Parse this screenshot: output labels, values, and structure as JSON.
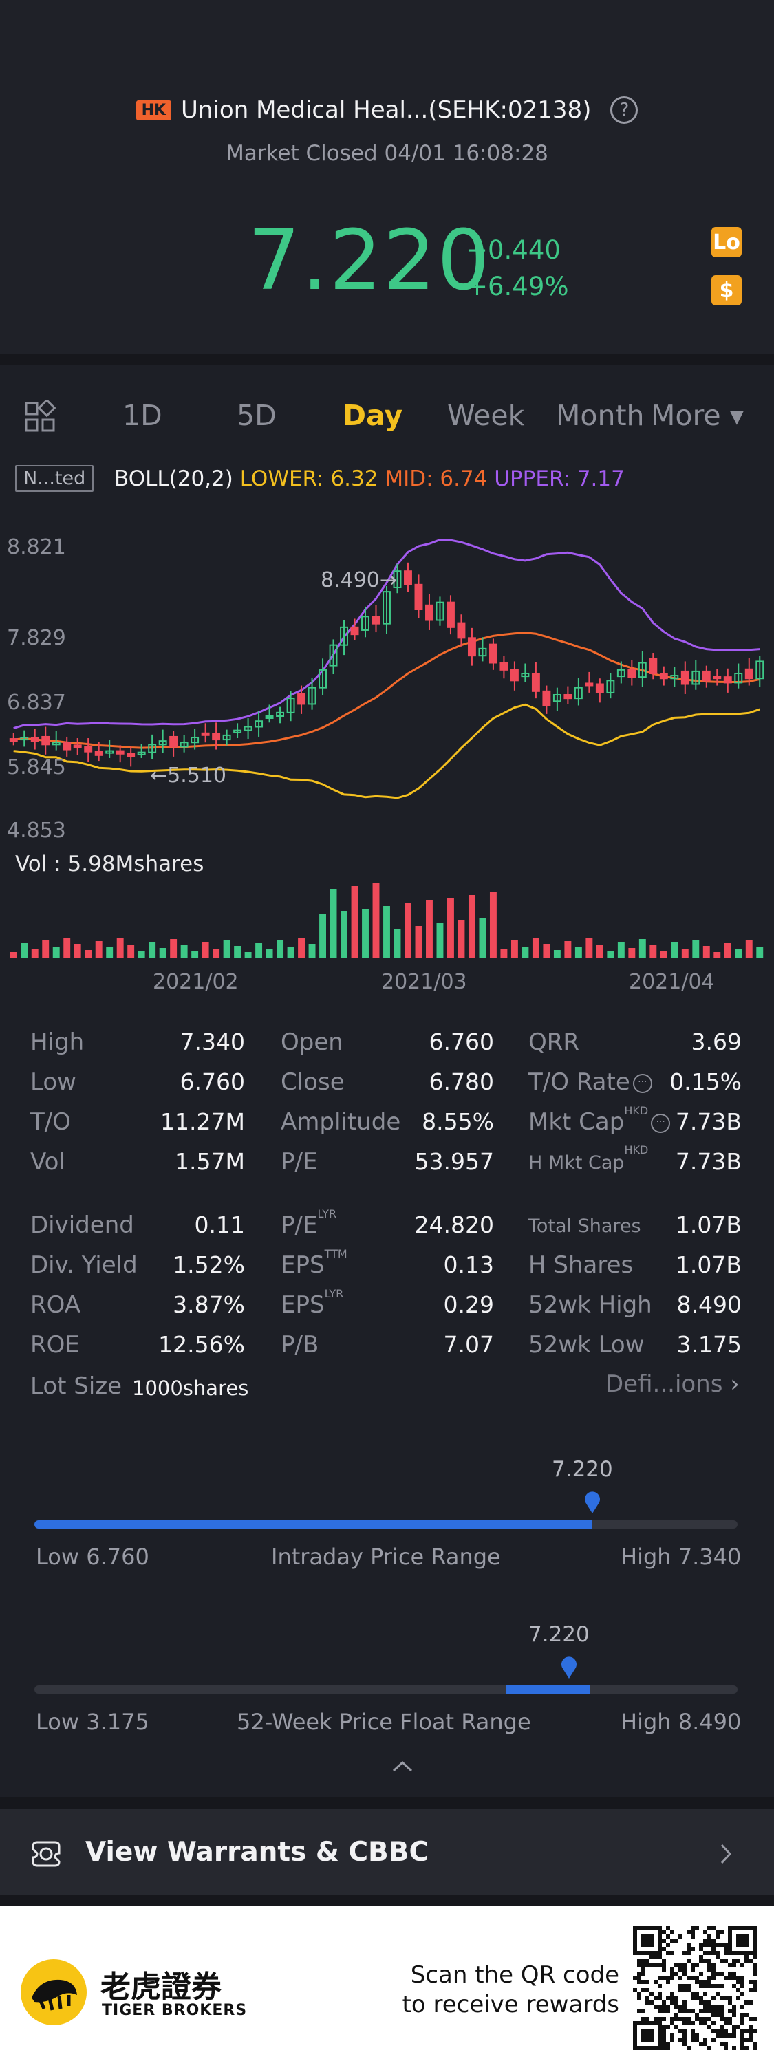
{
  "header": {
    "market_badge": "HK",
    "title": "Union Medical Heal...(SEHK:02138)",
    "status": "Market Closed 04/01 16:08:28",
    "price": "7.220",
    "change": "+0.440",
    "change_pct": "+6.49%",
    "tag_lo": "Lo",
    "tag_dollar": "$"
  },
  "tabs": {
    "items": [
      "1D",
      "5D",
      "Day",
      "Week",
      "Month"
    ],
    "active": "Day",
    "more": "More ▾"
  },
  "indicator": {
    "box": "N...ted",
    "name": "BOLL(20,2)",
    "lower": "LOWER: 6.32",
    "mid": "MID: 6.74",
    "upper": "UPPER: 7.17"
  },
  "chart_data": {
    "type": "candlestick",
    "y_ticks": [
      "8.821",
      "7.829",
      "6.837",
      "5.845",
      "4.853"
    ],
    "x_ticks": [
      "2021/02",
      "2021/03",
      "2021/04"
    ],
    "high_annotation": "8.490→",
    "low_annotation": "←5.510",
    "colors": {
      "up": "#3ec887",
      "down": "#f04a5a",
      "upper": "#a35bf0",
      "mid": "#f36a2c",
      "lower": "#f4c01f"
    },
    "volume_label": "Vol  : 5.98Mshares"
  },
  "stats": {
    "col1": [
      {
        "label": "High",
        "value": "7.340"
      },
      {
        "label": "Low",
        "value": "6.760"
      },
      {
        "label": "T/O",
        "value": "11.27M"
      },
      {
        "label": "Vol",
        "value": "1.57M"
      },
      {
        "label": "Dividend",
        "value": "0.11"
      },
      {
        "label": "Div. Yield",
        "value": "1.52%"
      },
      {
        "label": "ROA",
        "value": "3.87%"
      },
      {
        "label": "ROE",
        "value": "12.56%"
      }
    ],
    "col2": [
      {
        "label": "Open",
        "value": "6.760"
      },
      {
        "label": "Close",
        "value": "6.780"
      },
      {
        "label": "Amplitude",
        "value": "8.55%"
      },
      {
        "label": "P/E",
        "value": "53.957"
      },
      {
        "label": "P/E",
        "sup": "LYR",
        "value": "24.820"
      },
      {
        "label": "EPS",
        "sup": "TTM",
        "value": "0.13"
      },
      {
        "label": "EPS",
        "sup": "LYR",
        "value": "0.29"
      },
      {
        "label": "P/B",
        "value": "7.07"
      }
    ],
    "col3": [
      {
        "label": "QRR",
        "value": "3.69"
      },
      {
        "label": "T/O Rate",
        "value": "0.15%"
      },
      {
        "label": "Mkt Cap",
        "sup": "HKD",
        "value": "7.73B"
      },
      {
        "label": "H Mkt Cap",
        "sup": "HKD",
        "value": "7.73B"
      },
      {
        "label": "Total Shares",
        "value": "1.07B"
      },
      {
        "label": "H Shares",
        "value": "1.07B"
      },
      {
        "label": "52wk High",
        "value": "8.490"
      },
      {
        "label": "52wk Low",
        "value": "3.175"
      }
    ],
    "lot_size_label": "Lot Size",
    "lot_size_value": "1000shares",
    "definitions": "Defi...ions"
  },
  "intraday": {
    "current": "7.220",
    "low": "Low 6.760",
    "title": "Intraday Price Range",
    "high": "High 7.340",
    "position": 0.793
  },
  "week52": {
    "current": "7.220",
    "low": "Low 3.175",
    "title": "52-Week Price Float Range",
    "high": "High 8.490",
    "fill_start": 0.67,
    "fill_end": 0.79,
    "position": 0.761
  },
  "warrants": {
    "label": "View  Warrants & CBBC"
  },
  "footer": {
    "brand_cn": "老虎證券",
    "brand_en": "TIGER BROKERS",
    "scan_line1": "Scan the QR code",
    "scan_line2": "to receive rewards"
  }
}
